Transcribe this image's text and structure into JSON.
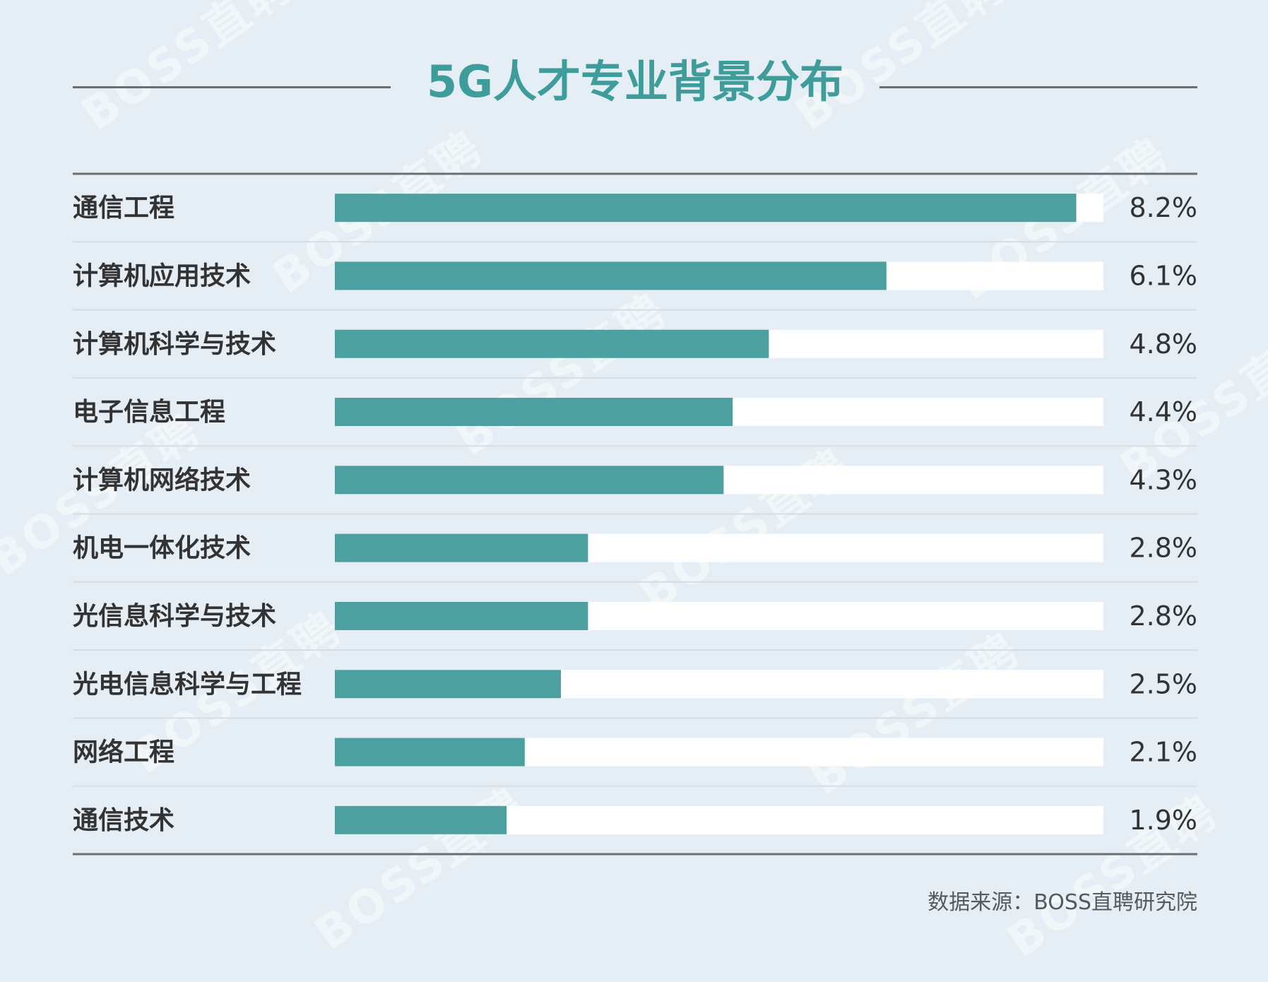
{
  "chart_data": {
    "type": "bar",
    "orientation": "horizontal",
    "title": "5G人才专业背景分布",
    "categories": [
      "通信工程",
      "计算机应用技术",
      "计算机科学与技术",
      "电子信息工程",
      "计算机网络技术",
      "机电一体化技术",
      "光信息科学与技术",
      "光电信息科学与工程",
      "网络工程",
      "通信技术"
    ],
    "values": [
      8.2,
      6.1,
      4.8,
      4.4,
      4.3,
      2.8,
      2.8,
      2.5,
      2.1,
      1.9
    ],
    "value_labels": [
      "8.2%",
      "6.1%",
      "4.8%",
      "4.4%",
      "4.3%",
      "2.8%",
      "2.8%",
      "2.5%",
      "2.1%",
      "1.9%"
    ],
    "xlim": [
      0,
      8.5
    ],
    "grid": false,
    "legend": "none",
    "colors": {
      "bar": "#4ca1a0",
      "track": "#ffffff",
      "title": "#3e9d9b",
      "rule": "#6b6f73",
      "divider": "#d5dde4",
      "label": "#333333"
    }
  },
  "source_note": "数据来源：BOSS直聘研究院",
  "watermark_text": "BOSS直聘"
}
